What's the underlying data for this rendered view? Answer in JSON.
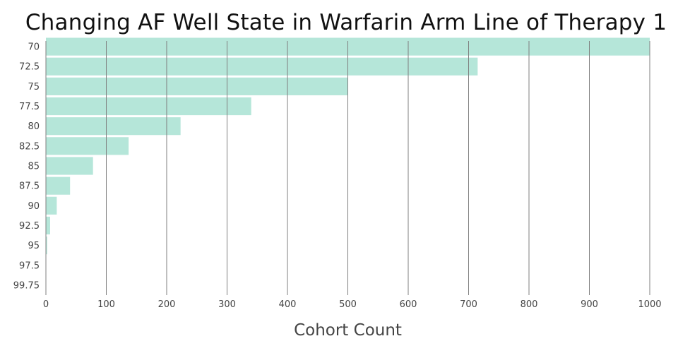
{
  "chart_data": {
    "type": "bar",
    "orientation": "horizontal",
    "title": "Changing AF Well State in Warfarin Arm Line of Therapy 1",
    "xlabel": "Cohort Count",
    "ylabel": "",
    "categories": [
      "70",
      "72.5",
      "75",
      "77.5",
      "80",
      "82.5",
      "85",
      "87.5",
      "90",
      "92.5",
      "95",
      "97.5",
      "99.75"
    ],
    "values": [
      1000,
      715,
      500,
      340,
      223,
      137,
      78,
      40,
      18,
      7,
      2,
      0.5,
      0.2
    ],
    "xlim": [
      0,
      1000
    ],
    "xticks": [
      "0",
      "100",
      "200",
      "300",
      "400",
      "500",
      "600",
      "700",
      "800",
      "900",
      "1000"
    ],
    "grid": true,
    "legend": "none",
    "bar_color": "#b5e6d9",
    "grid_color": "#7f7f7f"
  }
}
